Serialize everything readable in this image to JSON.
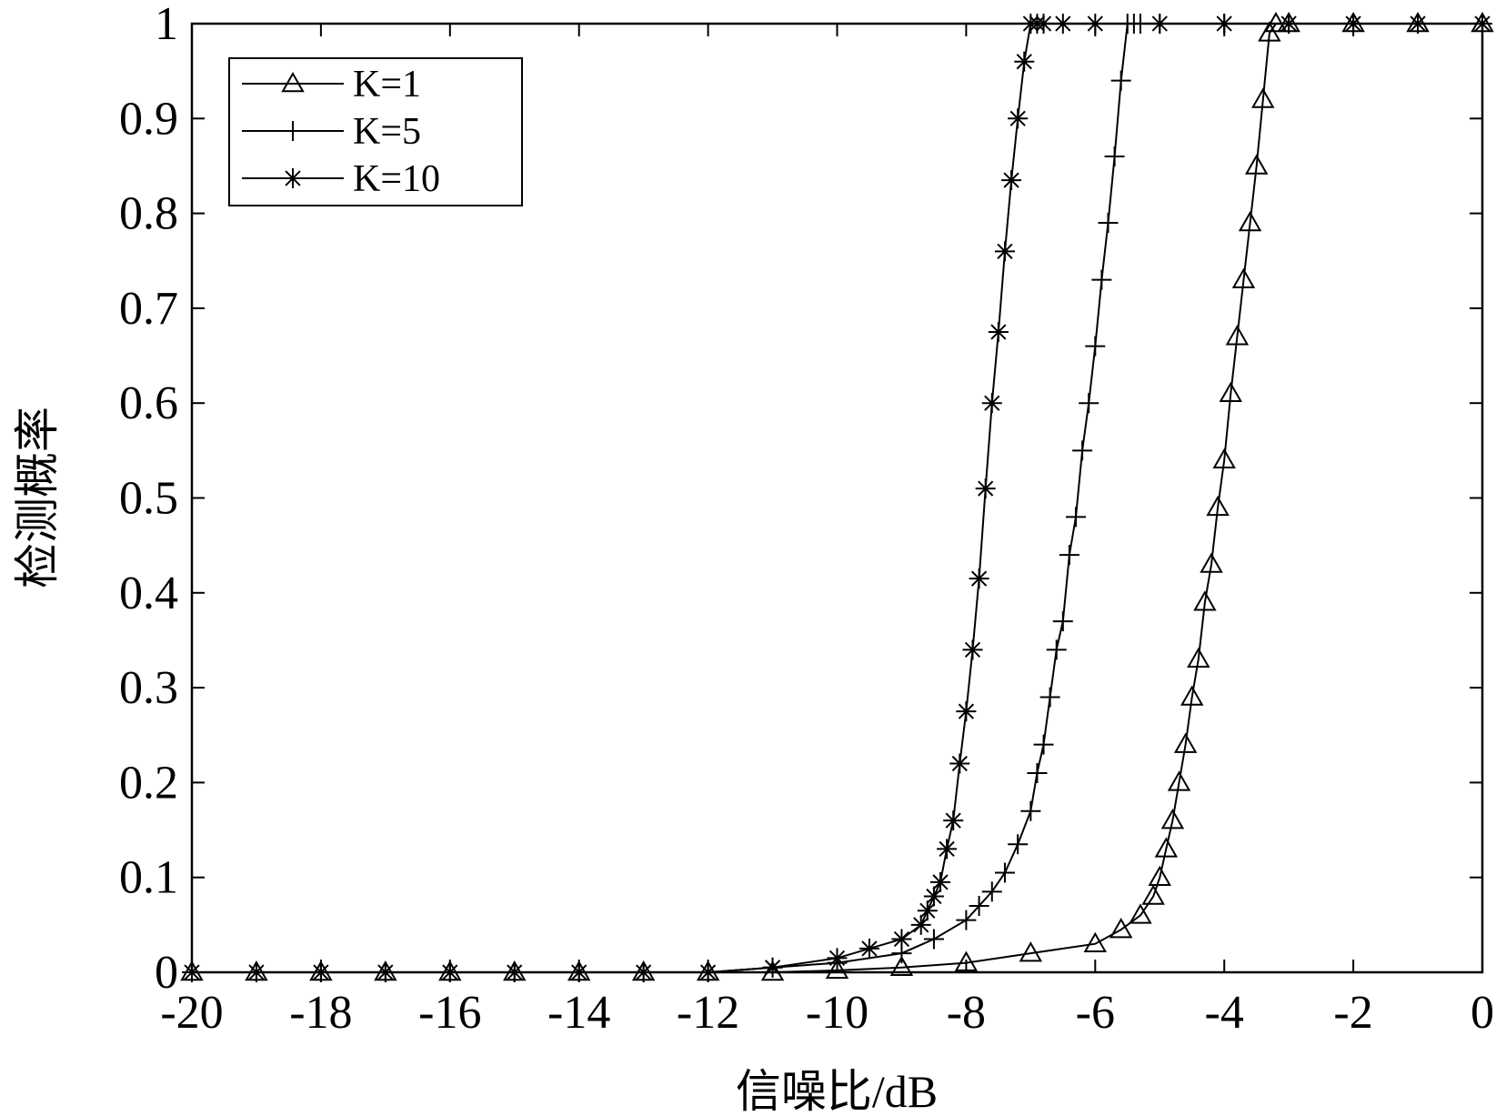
{
  "chart_data": {
    "type": "line",
    "title": "",
    "xlabel": "信噪比/dB",
    "ylabel": "检测概率",
    "xlim": [
      -20,
      0
    ],
    "ylim": [
      0,
      1
    ],
    "xticks": [
      -20,
      -18,
      -16,
      -14,
      -12,
      -10,
      -8,
      -6,
      -4,
      -2,
      0
    ],
    "xtick_labels": [
      "-20",
      "-18",
      "-16",
      "-14",
      "-12",
      "-10",
      "-8",
      "-6",
      "-4",
      "-2",
      "0"
    ],
    "yticks": [
      0,
      0.1,
      0.2,
      0.3,
      0.4,
      0.5,
      0.6,
      0.7,
      0.8,
      0.9,
      1
    ],
    "ytick_labels": [
      "0",
      "0.1",
      "0.2",
      "0.3",
      "0.4",
      "0.5",
      "0.6",
      "0.7",
      "0.8",
      "0.9",
      "1"
    ],
    "grid": false,
    "legend": {
      "placement": "top-left",
      "entries": [
        "K=1",
        "K=5",
        "K=10"
      ]
    },
    "series": [
      {
        "name": "K=1",
        "marker": "triangle",
        "x": [
          -20,
          -19,
          -18,
          -17,
          -16,
          -15,
          -14,
          -13,
          -12,
          -11,
          -10,
          -9,
          -8,
          -7,
          -6,
          -5.6,
          -5.3,
          -5.1,
          -5.0,
          -4.9,
          -4.8,
          -4.7,
          -4.6,
          -4.5,
          -4.4,
          -4.3,
          -4.2,
          -4.1,
          -4.0,
          -3.9,
          -3.8,
          -3.7,
          -3.6,
          -3.5,
          -3.4,
          -3.3,
          -3.2,
          -3,
          -2,
          -1,
          0
        ],
        "y": [
          0,
          0,
          0,
          0,
          0,
          0,
          0,
          0,
          0,
          0,
          0.002,
          0.005,
          0.01,
          0.02,
          0.03,
          0.045,
          0.06,
          0.08,
          0.1,
          0.13,
          0.16,
          0.2,
          0.24,
          0.29,
          0.33,
          0.39,
          0.43,
          0.49,
          0.54,
          0.61,
          0.67,
          0.73,
          0.79,
          0.85,
          0.92,
          0.99,
          1,
          1,
          1,
          1,
          1
        ]
      },
      {
        "name": "K=5",
        "marker": "plus",
        "x": [
          -20,
          -19,
          -18,
          -17,
          -16,
          -15,
          -14,
          -13,
          -12,
          -11,
          -10,
          -9,
          -8.5,
          -8.0,
          -7.8,
          -7.6,
          -7.4,
          -7.2,
          -7.0,
          -6.9,
          -6.8,
          -6.7,
          -6.6,
          -6.5,
          -6.4,
          -6.3,
          -6.2,
          -6.1,
          -6.0,
          -5.9,
          -5.8,
          -5.7,
          -5.6,
          -5.5,
          -5.4,
          -5.3,
          -5,
          -4,
          -3,
          -2,
          -1,
          0
        ],
        "y": [
          0,
          0,
          0,
          0,
          0,
          0,
          0,
          0,
          0,
          0.005,
          0.01,
          0.02,
          0.035,
          0.055,
          0.07,
          0.085,
          0.105,
          0.135,
          0.17,
          0.21,
          0.24,
          0.29,
          0.34,
          0.37,
          0.44,
          0.48,
          0.55,
          0.6,
          0.66,
          0.73,
          0.79,
          0.86,
          0.94,
          1,
          1,
          1,
          1,
          1,
          1,
          1,
          1,
          1
        ]
      },
      {
        "name": "K=10",
        "marker": "asterisk",
        "x": [
          -20,
          -19,
          -18,
          -17,
          -16,
          -15,
          -14,
          -13,
          -12,
          -11,
          -10,
          -9.5,
          -9.0,
          -8.7,
          -8.6,
          -8.5,
          -8.4,
          -8.3,
          -8.2,
          -8.1,
          -8.0,
          -7.9,
          -7.8,
          -7.7,
          -7.6,
          -7.5,
          -7.4,
          -7.3,
          -7.2,
          -7.1,
          -7.0,
          -6.9,
          -6.8,
          -6.5,
          -6,
          -5,
          -4,
          -3,
          -2,
          -1,
          0
        ],
        "y": [
          0,
          0,
          0,
          0,
          0,
          0,
          0,
          0,
          0,
          0.005,
          0.015,
          0.025,
          0.035,
          0.05,
          0.065,
          0.08,
          0.095,
          0.13,
          0.16,
          0.22,
          0.275,
          0.34,
          0.415,
          0.51,
          0.6,
          0.675,
          0.76,
          0.835,
          0.9,
          0.96,
          1,
          1,
          1,
          1,
          1,
          1,
          1,
          1,
          1,
          1,
          1
        ]
      }
    ]
  }
}
